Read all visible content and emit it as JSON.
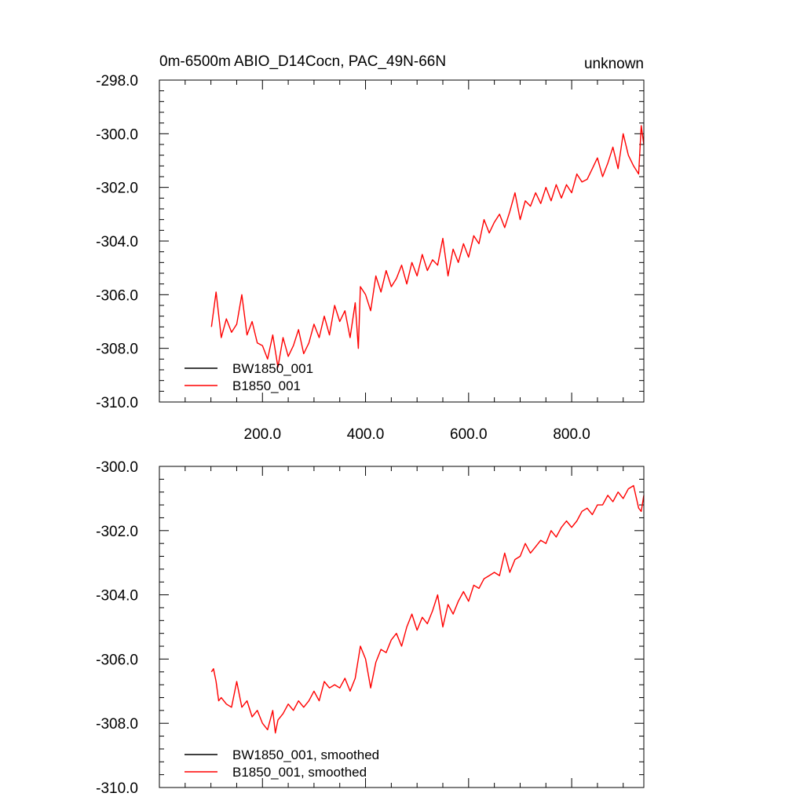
{
  "chart_data": [
    {
      "type": "line",
      "title_left": "0m-6500m ABIO_D14Cocn, PAC_49N-66N",
      "title_right": "unknown",
      "xlim": [
        0,
        940
      ],
      "ylim": [
        -310,
        -298
      ],
      "x_ticks": [
        200,
        400,
        600,
        800
      ],
      "x_tick_labels": [
        "200.0",
        "400.0",
        "600.0",
        "800.0"
      ],
      "y_ticks": [
        -310,
        -308,
        -306,
        -304,
        -302,
        -300,
        -298
      ],
      "y_tick_labels": [
        "-310.0",
        "-308.0",
        "-306.0",
        "-304.0",
        "-302.0",
        "-300.0",
        "-298.0"
      ],
      "legend": [
        "BW1850_001",
        "B1850_001"
      ],
      "legend_position": "bottom-left",
      "series": [
        {
          "name": "BW1850_001",
          "color": "#000000",
          "x": [],
          "y": []
        },
        {
          "name": "B1850_001",
          "color": "#ff0000",
          "x": [
            101,
            110,
            120,
            130,
            140,
            150,
            160,
            170,
            180,
            190,
            200,
            210,
            220,
            230,
            240,
            250,
            260,
            270,
            280,
            290,
            300,
            310,
            320,
            330,
            340,
            350,
            360,
            370,
            380,
            386,
            390,
            400,
            410,
            420,
            430,
            440,
            450,
            460,
            470,
            480,
            490,
            500,
            510,
            520,
            530,
            540,
            550,
            560,
            570,
            580,
            590,
            600,
            610,
            620,
            630,
            640,
            650,
            660,
            670,
            680,
            690,
            700,
            710,
            720,
            730,
            740,
            750,
            760,
            770,
            780,
            790,
            800,
            810,
            820,
            830,
            840,
            850,
            860,
            870,
            880,
            890,
            900,
            910,
            920,
            930,
            935,
            940
          ],
          "y": [
            -307.2,
            -305.9,
            -307.6,
            -306.9,
            -307.4,
            -307.1,
            -306.0,
            -307.5,
            -307.0,
            -307.8,
            -307.9,
            -308.4,
            -307.5,
            -308.7,
            -307.6,
            -308.3,
            -307.9,
            -307.3,
            -308.2,
            -307.8,
            -307.1,
            -307.6,
            -306.8,
            -307.5,
            -306.4,
            -307.0,
            -306.6,
            -307.6,
            -306.3,
            -308.0,
            -305.7,
            -306.0,
            -306.6,
            -305.3,
            -305.9,
            -305.1,
            -305.7,
            -305.4,
            -304.9,
            -305.6,
            -304.8,
            -305.3,
            -304.5,
            -305.1,
            -304.7,
            -304.9,
            -303.9,
            -305.3,
            -304.3,
            -304.8,
            -304.1,
            -304.6,
            -303.8,
            -304.1,
            -303.2,
            -303.7,
            -303.3,
            -303.0,
            -303.5,
            -302.9,
            -302.2,
            -303.2,
            -302.5,
            -302.7,
            -302.2,
            -302.6,
            -302.0,
            -302.5,
            -301.9,
            -302.4,
            -301.9,
            -302.2,
            -301.5,
            -301.8,
            -301.7,
            -301.3,
            -300.9,
            -301.6,
            -301.1,
            -300.5,
            -301.3,
            -300.0,
            -300.8,
            -301.2,
            -301.5,
            -299.7,
            -300.4
          ]
        }
      ]
    },
    {
      "type": "line",
      "xlim": [
        0,
        940
      ],
      "ylim": [
        -310,
        -300
      ],
      "x_ticks": [
        200,
        400,
        600,
        800
      ],
      "y_ticks": [
        -310,
        -308,
        -306,
        -304,
        -302,
        -300
      ],
      "y_tick_labels": [
        "-310.0",
        "-308.0",
        "-306.0",
        "-304.0",
        "-302.0",
        "-300.0"
      ],
      "legend": [
        "BW1850_001, smoothed",
        "B1850_001, smoothed"
      ],
      "legend_position": "bottom-left",
      "series": [
        {
          "name": "BW1850_001, smoothed",
          "color": "#000000",
          "x": [],
          "y": []
        },
        {
          "name": "B1850_001, smoothed",
          "color": "#ff0000",
          "x": [
            101,
            105,
            110,
            115,
            120,
            130,
            140,
            150,
            160,
            170,
            180,
            190,
            200,
            210,
            215,
            220,
            225,
            230,
            240,
            250,
            260,
            270,
            280,
            290,
            300,
            310,
            320,
            330,
            340,
            350,
            360,
            370,
            380,
            390,
            400,
            410,
            420,
            430,
            440,
            450,
            460,
            470,
            480,
            490,
            500,
            510,
            520,
            530,
            540,
            550,
            560,
            570,
            580,
            590,
            600,
            610,
            620,
            630,
            640,
            650,
            660,
            670,
            680,
            690,
            700,
            710,
            720,
            730,
            740,
            750,
            760,
            770,
            780,
            790,
            800,
            810,
            820,
            830,
            840,
            850,
            860,
            870,
            880,
            890,
            900,
            910,
            920,
            930,
            935,
            940
          ],
          "y": [
            -306.4,
            -306.3,
            -306.7,
            -307.3,
            -307.2,
            -307.4,
            -307.5,
            -306.7,
            -307.5,
            -307.3,
            -307.8,
            -307.6,
            -308.0,
            -308.2,
            -307.9,
            -307.6,
            -308.3,
            -307.9,
            -307.7,
            -307.4,
            -307.6,
            -307.3,
            -307.5,
            -307.3,
            -307.0,
            -307.3,
            -306.7,
            -306.9,
            -306.8,
            -306.9,
            -306.6,
            -307.0,
            -306.6,
            -305.6,
            -306.0,
            -306.9,
            -306.1,
            -305.7,
            -305.8,
            -305.4,
            -305.2,
            -305.6,
            -305.0,
            -304.6,
            -305.1,
            -304.7,
            -304.9,
            -304.5,
            -304.0,
            -305.0,
            -304.3,
            -304.6,
            -304.2,
            -303.9,
            -304.2,
            -303.7,
            -303.8,
            -303.5,
            -303.4,
            -303.3,
            -303.4,
            -302.7,
            -303.3,
            -302.9,
            -302.8,
            -302.4,
            -302.7,
            -302.5,
            -302.3,
            -302.4,
            -302.0,
            -302.2,
            -301.9,
            -301.7,
            -301.9,
            -301.7,
            -301.4,
            -301.3,
            -301.5,
            -301.2,
            -301.2,
            -300.9,
            -301.1,
            -300.8,
            -301.0,
            -300.7,
            -300.6,
            -301.3,
            -301.4,
            -300.9
          ]
        }
      ]
    }
  ]
}
